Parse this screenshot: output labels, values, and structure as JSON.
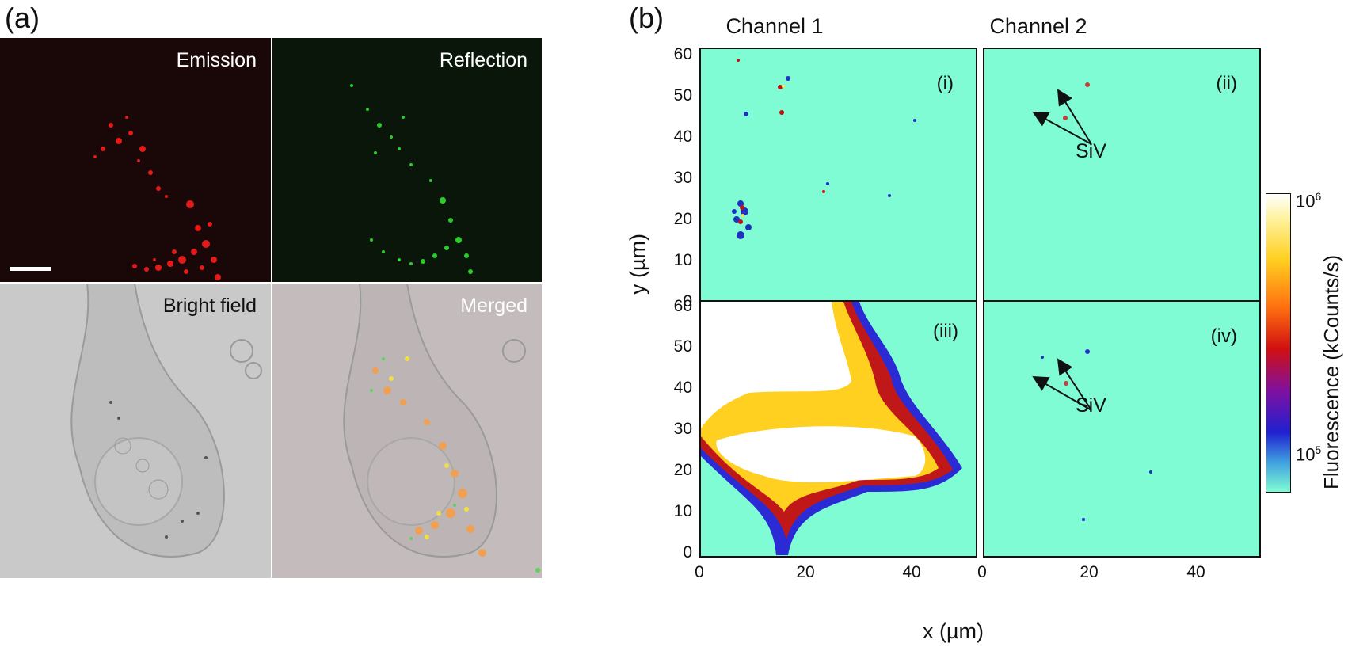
{
  "panel_a": {
    "label": "(a)",
    "images": [
      {
        "label": "Emission"
      },
      {
        "label": "Reflection"
      },
      {
        "label": "Bright field"
      },
      {
        "label": "Merged"
      }
    ]
  },
  "panel_b": {
    "label": "(b)",
    "column_titles": [
      "Channel 1",
      "Channel 2"
    ],
    "subplot_labels": [
      "(i)",
      "(ii)",
      "(iii)",
      "(iv)"
    ],
    "annotation": "SiV",
    "y_ticks": [
      "0",
      "10",
      "20",
      "30",
      "40",
      "50",
      "60"
    ],
    "x_ticks": [
      "0",
      "20",
      "40"
    ],
    "xlabel": "x (µm)",
    "ylabel": "y (µm)",
    "colorbar": {
      "label": "Fluorescence (kCounts/s)",
      "tick_high_base": "10",
      "tick_high_exp": "6",
      "tick_low_base": "10",
      "tick_low_exp": "5"
    }
  },
  "colors": {
    "map_background": "#7ffcd3",
    "red_channel": "#e01818",
    "green_channel": "#28c828"
  },
  "chart_data": {
    "type": "heatmap",
    "title": "",
    "xlabel": "x (µm)",
    "ylabel": "y (µm)",
    "xlim": [
      0,
      52
    ],
    "ylim": [
      0,
      62
    ],
    "x_ticks": [
      0,
      20,
      40
    ],
    "y_ticks": [
      0,
      10,
      20,
      30,
      40,
      50,
      60
    ],
    "colorbar_label": "Fluorescence (kCounts/s)",
    "colorbar_range": [
      70000,
      1000000
    ],
    "colorbar_scale": "log",
    "subplots": [
      "(i)",
      "(ii)",
      "(iii)",
      "(iv)"
    ],
    "columns": [
      "Channel 1",
      "Channel 2"
    ]
  }
}
